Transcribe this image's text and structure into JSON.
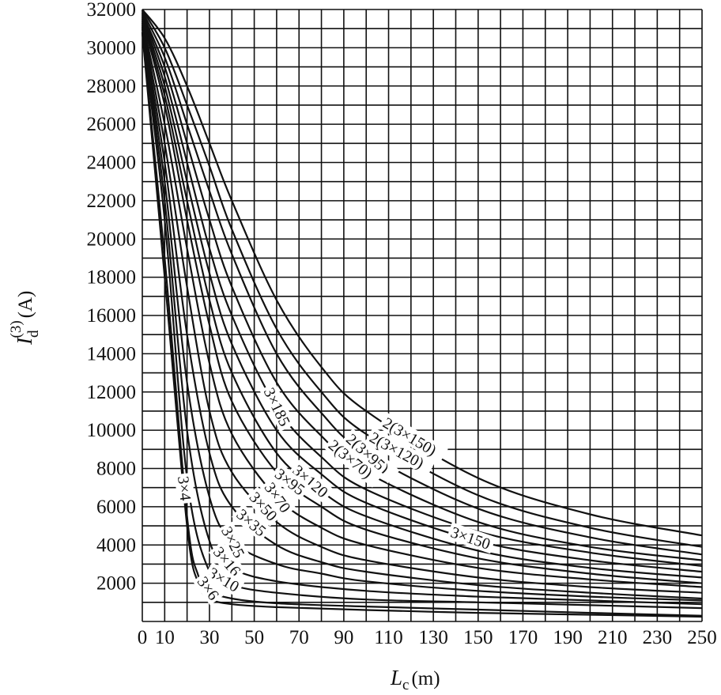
{
  "chart_data": {
    "type": "line",
    "title": "",
    "xlabel": {
      "main": "L",
      "sub": "c",
      "unit": "(m)"
    },
    "ylabel": {
      "main": "I",
      "sub": "d",
      "sup": "(3)",
      "unit": "(A)"
    },
    "xlim": [
      0,
      250
    ],
    "ylim": [
      0,
      32000
    ],
    "x_ticks": [
      "0",
      "10",
      "30",
      "50",
      "70",
      "90",
      "110",
      "130",
      "150",
      "170",
      "190",
      "210",
      "230",
      "250"
    ],
    "y_ticks": [
      "2000",
      "4000",
      "6000",
      "8000",
      "10000",
      "12000",
      "14000",
      "16000",
      "18000",
      "20000",
      "22000",
      "24000",
      "26000",
      "28000",
      "30000",
      "32000"
    ],
    "grid": true,
    "series": [
      {
        "name": "3×4",
        "x": [
          0,
          10,
          20,
          25,
          30,
          40,
          60,
          100,
          150,
          200,
          250
        ],
        "y": [
          30800,
          18000,
          5000,
          2000,
          1200,
          900,
          750,
          600,
          450,
          350,
          250
        ]
      },
      {
        "name": "3×6",
        "x": [
          0,
          10,
          20,
          25,
          30,
          40,
          60,
          100,
          150,
          200,
          250
        ],
        "y": [
          30800,
          19000,
          5500,
          2400,
          1600,
          1200,
          950,
          780,
          620,
          450,
          300
        ]
      },
      {
        "name": "3×10",
        "x": [
          0,
          10,
          20,
          30,
          40,
          60,
          100,
          150,
          200,
          250
        ],
        "y": [
          30800,
          21000,
          7500,
          2600,
          1900,
          1500,
          1150,
          1000,
          850,
          700
        ]
      },
      {
        "name": "3×16",
        "x": [
          0,
          10,
          20,
          30,
          40,
          60,
          100,
          150,
          200,
          250
        ],
        "y": [
          31000,
          22000,
          10000,
          4200,
          2800,
          2100,
          1600,
          1300,
          1100,
          900
        ]
      },
      {
        "name": "3×25",
        "x": [
          0,
          10,
          20,
          30,
          40,
          60,
          80,
          100,
          150,
          200,
          250
        ],
        "y": [
          31100,
          23000,
          12500,
          6500,
          4200,
          3000,
          2500,
          2100,
          1600,
          1300,
          1100
        ]
      },
      {
        "name": "3×35",
        "x": [
          0,
          10,
          20,
          30,
          40,
          60,
          80,
          100,
          150,
          200,
          250
        ],
        "y": [
          31200,
          24000,
          15000,
          8800,
          6000,
          4000,
          3100,
          2600,
          1900,
          1500,
          1200
        ]
      },
      {
        "name": "3×50",
        "x": [
          0,
          10,
          20,
          30,
          40,
          60,
          80,
          100,
          150,
          200,
          250
        ],
        "y": [
          31300,
          25000,
          17500,
          11000,
          7800,
          5200,
          3900,
          3200,
          2300,
          1800,
          1500
        ]
      },
      {
        "name": "3×70",
        "x": [
          0,
          10,
          20,
          30,
          40,
          60,
          80,
          100,
          150,
          200,
          250
        ],
        "y": [
          31400,
          26000,
          19500,
          13500,
          9800,
          6500,
          4900,
          4000,
          2800,
          2200,
          1800
        ]
      },
      {
        "name": "3×95",
        "x": [
          0,
          10,
          20,
          30,
          40,
          60,
          80,
          100,
          150,
          200,
          250
        ],
        "y": [
          31500,
          27000,
          21000,
          15500,
          11500,
          7800,
          6000,
          4800,
          3300,
          2500,
          2000
        ]
      },
      {
        "name": "3×120",
        "x": [
          0,
          10,
          20,
          30,
          40,
          60,
          80,
          100,
          150,
          200,
          250
        ],
        "y": [
          31600,
          27500,
          22000,
          16800,
          13000,
          8800,
          6800,
          5500,
          3700,
          2800,
          2300
        ]
      },
      {
        "name": "3×150",
        "x": [
          0,
          10,
          20,
          30,
          40,
          60,
          80,
          100,
          150,
          200,
          250
        ],
        "y": [
          31700,
          28000,
          23000,
          18200,
          14500,
          10000,
          7700,
          6200,
          4200,
          3200,
          2600
        ]
      },
      {
        "name": "3×185",
        "x": [
          0,
          10,
          20,
          30,
          40,
          60,
          80,
          100,
          150,
          200,
          250
        ],
        "y": [
          31800,
          28500,
          24000,
          19500,
          16000,
          11200,
          8600,
          6900,
          4700,
          3600,
          2900
        ]
      },
      {
        "name": "2(3×70)",
        "x": [
          0,
          10,
          20,
          30,
          40,
          60,
          80,
          100,
          150,
          200,
          250
        ],
        "y": [
          31800,
          29000,
          25000,
          21000,
          17500,
          12500,
          9700,
          7800,
          5200,
          3900,
          3200
        ]
      },
      {
        "name": "2(3×95)",
        "x": [
          0,
          10,
          20,
          30,
          40,
          60,
          80,
          100,
          150,
          200,
          250
        ],
        "y": [
          31900,
          29500,
          26000,
          22500,
          19200,
          14000,
          10900,
          8800,
          5900,
          4400,
          3500
        ]
      },
      {
        "name": "2(3×120)",
        "x": [
          0,
          10,
          20,
          30,
          40,
          60,
          80,
          100,
          150,
          200,
          250
        ],
        "y": [
          32000,
          30000,
          27000,
          23800,
          20500,
          15300,
          12000,
          9800,
          6600,
          4900,
          3900
        ]
      },
      {
        "name": "2(3×150)",
        "x": [
          0,
          10,
          20,
          30,
          40,
          60,
          80,
          100,
          150,
          200,
          250
        ],
        "y": [
          32000,
          30500,
          28000,
          25000,
          22000,
          16800,
          13300,
          11000,
          7500,
          5600,
          4500
        ]
      }
    ],
    "curve_labels": [
      {
        "text": "2(3×150)",
        "series": "2(3×150)",
        "x": 108
      },
      {
        "text": "2(3×120)",
        "series": "2(3×120)",
        "x": 102
      },
      {
        "text": "2(3×95)",
        "series": "2(3×95)",
        "x": 92
      },
      {
        "text": "2(3×70)",
        "series": "2(3×70)",
        "x": 84
      },
      {
        "text": "3×185",
        "series": "3×185",
        "x": 56
      },
      {
        "text": "3×120",
        "series": "3×120",
        "x": 68
      },
      {
        "text": "3×95",
        "series": "3×95",
        "x": 60
      },
      {
        "text": "3×70",
        "series": "3×70",
        "x": 56
      },
      {
        "text": "3×50",
        "series": "3×50",
        "x": 49
      },
      {
        "text": "3×35",
        "series": "3×35",
        "x": 43
      },
      {
        "text": "3×25",
        "series": "3×25",
        "x": 37
      },
      {
        "text": "3×16",
        "series": "3×16",
        "x": 33
      },
      {
        "text": "3×10",
        "series": "3×10",
        "x": 30
      },
      {
        "text": "3×6",
        "series": "3×6",
        "x": 26
      },
      {
        "text": "3×4",
        "series": "3×4",
        "x": 18
      },
      {
        "text": "3×150",
        "series": "3×150",
        "x": 138
      }
    ]
  }
}
